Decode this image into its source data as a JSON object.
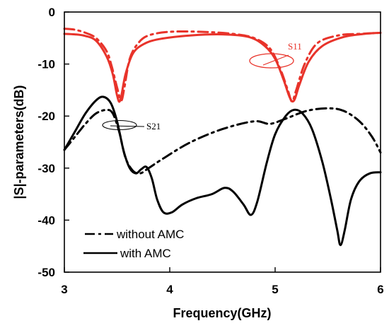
{
  "chart_data": {
    "type": "line",
    "title": "",
    "xlabel": "Frequency(GHz)",
    "ylabel": "|S|-parameters(dB)",
    "xlim": [
      3,
      6
    ],
    "ylim": [
      -50,
      0
    ],
    "xticks": [
      "3",
      "4",
      "5",
      "6"
    ],
    "yticks": [
      "0",
      "-10",
      "-20",
      "-30",
      "-40",
      "-50"
    ],
    "grid": false,
    "legend_position": "bottom-left",
    "legend": [
      {
        "label": "without AMC",
        "style": "dashdot"
      },
      {
        "label": "with AMC",
        "style": "solid"
      }
    ],
    "annotations": [
      {
        "text": "S11",
        "color": "#e8332a"
      },
      {
        "text": "S21",
        "color": "#000000"
      }
    ],
    "series": [
      {
        "group": "S11",
        "variant": "without AMC",
        "color": "#e8332a",
        "style": "dashdot",
        "points": [
          [
            3.0,
            -3.2
          ],
          [
            3.1,
            -3.4
          ],
          [
            3.2,
            -4.0
          ],
          [
            3.3,
            -5.0
          ],
          [
            3.4,
            -7.5
          ],
          [
            3.45,
            -10.5
          ],
          [
            3.5,
            -14.5
          ],
          [
            3.54,
            -17.0
          ],
          [
            3.57,
            -14.5
          ],
          [
            3.62,
            -9.0
          ],
          [
            3.7,
            -6.0
          ],
          [
            3.8,
            -4.5
          ],
          [
            4.0,
            -3.8
          ],
          [
            4.3,
            -3.8
          ],
          [
            4.6,
            -4.2
          ],
          [
            4.8,
            -5.0
          ],
          [
            4.95,
            -7.0
          ],
          [
            5.05,
            -11.0
          ],
          [
            5.12,
            -15.0
          ],
          [
            5.16,
            -17.2
          ],
          [
            5.2,
            -15.0
          ],
          [
            5.28,
            -10.0
          ],
          [
            5.4,
            -6.0
          ],
          [
            5.6,
            -4.5
          ],
          [
            5.8,
            -4.2
          ],
          [
            6.0,
            -4.0
          ]
        ]
      },
      {
        "group": "S11",
        "variant": "with AMC",
        "color": "#e8332a",
        "style": "solid",
        "points": [
          [
            3.0,
            -4.2
          ],
          [
            3.1,
            -4.3
          ],
          [
            3.2,
            -4.6
          ],
          [
            3.3,
            -5.5
          ],
          [
            3.4,
            -8.5
          ],
          [
            3.46,
            -12.0
          ],
          [
            3.5,
            -16.0
          ],
          [
            3.53,
            -17.0
          ],
          [
            3.58,
            -12.0
          ],
          [
            3.65,
            -8.0
          ],
          [
            3.75,
            -6.2
          ],
          [
            3.9,
            -5.2
          ],
          [
            4.2,
            -4.5
          ],
          [
            4.5,
            -4.3
          ],
          [
            4.75,
            -4.8
          ],
          [
            4.9,
            -6.5
          ],
          [
            5.0,
            -9.0
          ],
          [
            5.08,
            -13.0
          ],
          [
            5.14,
            -16.5
          ],
          [
            5.18,
            -17.0
          ],
          [
            5.23,
            -14.0
          ],
          [
            5.32,
            -9.5
          ],
          [
            5.45,
            -6.5
          ],
          [
            5.65,
            -4.8
          ],
          [
            5.85,
            -4.2
          ],
          [
            6.0,
            -4.0
          ]
        ]
      },
      {
        "group": "S21",
        "variant": "without AMC",
        "color": "#000000",
        "style": "dashdot",
        "points": [
          [
            3.0,
            -26.5
          ],
          [
            3.1,
            -24.0
          ],
          [
            3.2,
            -21.5
          ],
          [
            3.3,
            -19.5
          ],
          [
            3.4,
            -18.8
          ],
          [
            3.46,
            -19.5
          ],
          [
            3.52,
            -23.0
          ],
          [
            3.58,
            -28.0
          ],
          [
            3.65,
            -30.5
          ],
          [
            3.72,
            -31.0
          ],
          [
            3.8,
            -30.0
          ],
          [
            3.95,
            -28.0
          ],
          [
            4.2,
            -25.0
          ],
          [
            4.5,
            -22.5
          ],
          [
            4.8,
            -21.0
          ],
          [
            4.95,
            -21.5
          ],
          [
            5.1,
            -20.5
          ],
          [
            5.3,
            -19.0
          ],
          [
            5.5,
            -18.5
          ],
          [
            5.65,
            -19.0
          ],
          [
            5.8,
            -21.0
          ],
          [
            5.92,
            -24.0
          ],
          [
            6.0,
            -27.0
          ]
        ]
      },
      {
        "group": "S21",
        "variant": "with AMC",
        "color": "#000000",
        "style": "solid",
        "points": [
          [
            3.0,
            -26.5
          ],
          [
            3.1,
            -23.0
          ],
          [
            3.2,
            -19.5
          ],
          [
            3.3,
            -17.0
          ],
          [
            3.37,
            -16.3
          ],
          [
            3.44,
            -17.5
          ],
          [
            3.5,
            -21.0
          ],
          [
            3.56,
            -26.5
          ],
          [
            3.62,
            -30.0
          ],
          [
            3.68,
            -31.0
          ],
          [
            3.73,
            -30.2
          ],
          [
            3.78,
            -29.8
          ],
          [
            3.83,
            -32.0
          ],
          [
            3.88,
            -36.0
          ],
          [
            3.94,
            -38.5
          ],
          [
            4.02,
            -38.5
          ],
          [
            4.12,
            -37.0
          ],
          [
            4.25,
            -35.8
          ],
          [
            4.4,
            -35.0
          ],
          [
            4.52,
            -33.8
          ],
          [
            4.6,
            -34.5
          ],
          [
            4.7,
            -37.0
          ],
          [
            4.77,
            -39.0
          ],
          [
            4.83,
            -36.5
          ],
          [
            4.92,
            -29.0
          ],
          [
            5.0,
            -23.5
          ],
          [
            5.1,
            -20.0
          ],
          [
            5.18,
            -18.8
          ],
          [
            5.26,
            -19.5
          ],
          [
            5.35,
            -22.5
          ],
          [
            5.45,
            -29.0
          ],
          [
            5.53,
            -36.0
          ],
          [
            5.59,
            -42.0
          ],
          [
            5.62,
            -44.8
          ],
          [
            5.66,
            -42.0
          ],
          [
            5.72,
            -36.0
          ],
          [
            5.8,
            -32.5
          ],
          [
            5.9,
            -31.0
          ],
          [
            6.0,
            -30.8
          ]
        ]
      }
    ]
  }
}
